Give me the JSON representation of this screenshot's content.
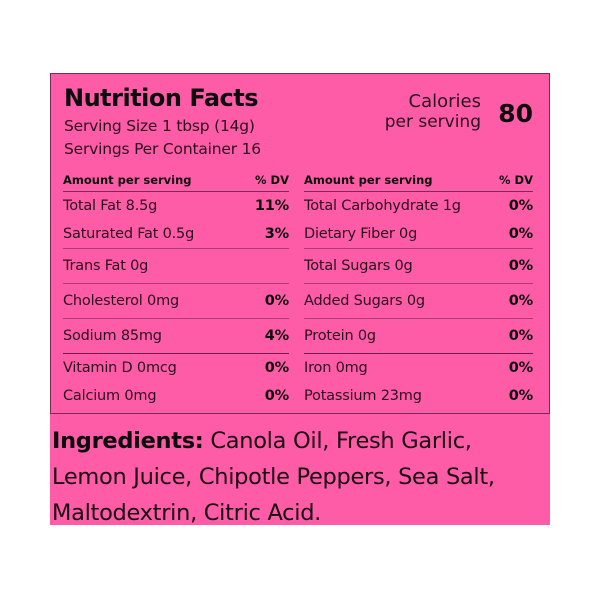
{
  "nutrition": {
    "title": "Nutrition Facts",
    "serving_size": "Serving Size 1 tbsp (14g)",
    "servings_per_container": "Servings Per Container 16",
    "calories_label": "Calories",
    "calories_sub": "per serving",
    "calories_value": "80",
    "colors": {
      "background": "#ff5ca8",
      "text": "#1a0a12",
      "border": "#7a2a55"
    },
    "left_column": {
      "header": {
        "amount": "Amount per serving",
        "dv": "% DV"
      },
      "rows": [
        {
          "label": "Total Fat 8.5g",
          "dv": "11%"
        },
        {
          "label": "Saturated Fat 0.5g",
          "dv": "3%"
        },
        {
          "label": "Trans Fat 0g",
          "dv": ""
        },
        {
          "label": "Cholesterol 0mg",
          "dv": "0%"
        },
        {
          "label": "Sodium 85mg",
          "dv": "4%"
        },
        {
          "label": "Vitamin D 0mcg",
          "dv": "0%"
        },
        {
          "label": "Calcium 0mg",
          "dv": "0%"
        }
      ]
    },
    "right_column": {
      "header": {
        "amount": "Amount per serving",
        "dv": "% DV"
      },
      "rows": [
        {
          "label": "Total Carbohydrate 1g",
          "dv": "0%"
        },
        {
          "label": "Dietary Fiber 0g",
          "dv": "0%"
        },
        {
          "label": "Total Sugars 0g",
          "dv": "0%"
        },
        {
          "label": "Added Sugars 0g",
          "dv": "0%"
        },
        {
          "label": "Protein 0g",
          "dv": "0%"
        },
        {
          "label": "Iron 0mg",
          "dv": "0%"
        },
        {
          "label": "Potassium 23mg",
          "dv": "0%"
        }
      ]
    }
  },
  "ingredients": {
    "label": "Ingredients:",
    "text": " Canola Oil, Fresh Garlic, Lemon Juice, Chipotle Peppers, Sea Salt, Maltodextrin, Citric Acid."
  }
}
